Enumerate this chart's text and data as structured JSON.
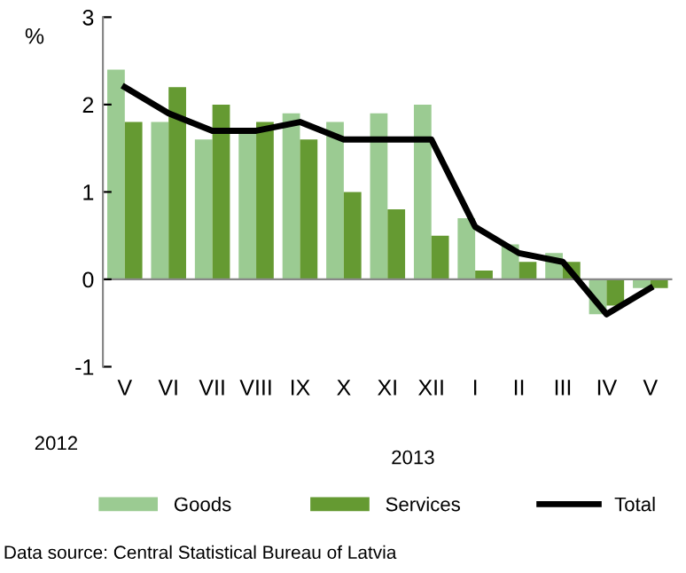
{
  "chart_data": {
    "type": "bar",
    "ylabel": "%",
    "categories": [
      "V",
      "VI",
      "VII",
      "VIII",
      "IX",
      "X",
      "XI",
      "XII",
      "I",
      "II",
      "III",
      "IV",
      "V"
    ],
    "series": [
      {
        "name": "Goods",
        "color": "#9bcb92",
        "values": [
          2.4,
          1.8,
          1.6,
          1.7,
          1.9,
          1.8,
          1.9,
          2.0,
          0.7,
          0.4,
          0.3,
          -0.4,
          -0.1
        ]
      },
      {
        "name": "Services",
        "color": "#659a32",
        "values": [
          1.8,
          2.2,
          2.0,
          1.8,
          1.6,
          1.0,
          0.8,
          0.5,
          0.1,
          0.2,
          0.2,
          -0.3,
          -0.1
        ]
      },
      {
        "name": "Total",
        "type": "line",
        "color": "#000000",
        "values": [
          2.2,
          1.9,
          1.7,
          1.7,
          1.8,
          1.6,
          1.6,
          1.6,
          0.6,
          0.3,
          0.2,
          -0.4,
          -0.1
        ]
      }
    ],
    "ref_lines": [
      {
        "axis": "y",
        "value": 0,
        "color": "#888888"
      }
    ],
    "ylim": [
      -1,
      3
    ],
    "yticks": [
      -1,
      0,
      1,
      2,
      3
    ],
    "grid": false,
    "legend": "bottom",
    "annotations": [
      "2012",
      "2013",
      "Data source: Central Statistical Bureau of Latvia"
    ]
  }
}
